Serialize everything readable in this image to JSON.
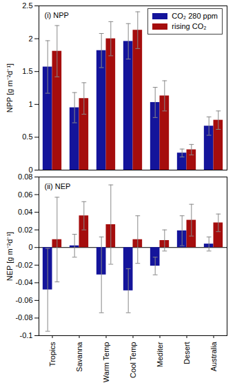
{
  "chart_data": [
    {
      "type": "bar",
      "title": "(i) NPP",
      "ylabel": "NPP [g m⁻²d⁻¹]",
      "categories": [
        "Tropics",
        "Savanna",
        "Warm Temp",
        "Cool Temp",
        "Mediter",
        "Desert",
        "Australia"
      ],
      "series": [
        {
          "name": "CO₂ 280 ppm",
          "color": "#14149b",
          "values": [
            1.57,
            0.95,
            1.82,
            1.96,
            1.03,
            0.26,
            0.67
          ],
          "errors": [
            0.4,
            0.23,
            0.26,
            0.27,
            0.23,
            0.06,
            0.14
          ]
        },
        {
          "name": "rising CO₂",
          "color": "#a50d0d",
          "values": [
            1.81,
            1.09,
            2.0,
            2.13,
            1.13,
            0.31,
            0.76
          ],
          "errors": [
            0.39,
            0.24,
            0.26,
            0.28,
            0.23,
            0.08,
            0.14
          ]
        }
      ],
      "ylim": [
        0,
        2.5
      ],
      "yticks": [
        0,
        0.5,
        1,
        1.5,
        2,
        2.5
      ],
      "legend": "top-right",
      "tick_labels": "y"
    },
    {
      "type": "bar",
      "title": "(ii) NEP",
      "ylabel": "NEP [g m⁻²d⁻¹]",
      "categories": [
        "Tropics",
        "Savanna",
        "Warm Temp",
        "Cool Temp",
        "Mediter",
        "Desert",
        "Australia"
      ],
      "series": [
        {
          "name": "CO₂ 280 ppm",
          "color": "#14149b",
          "values": [
            -0.048,
            0.002,
            -0.031,
            -0.049,
            -0.021,
            0.019,
            0.004
          ],
          "errors": [
            0.047,
            0.013,
            0.043,
            0.025,
            0.01,
            0.017,
            0.008
          ]
        },
        {
          "name": "rising CO₂",
          "color": "#a50d0d",
          "values": [
            0.009,
            0.036,
            0.026,
            0.009,
            0.008,
            0.031,
            0.028
          ],
          "errors": [
            0.048,
            0.016,
            0.045,
            0.027,
            0.012,
            0.018,
            0.01
          ]
        }
      ],
      "ylim": [
        -0.1,
        0.08
      ],
      "yticks": [
        -0.1,
        -0.08,
        -0.06,
        -0.04,
        -0.02,
        0,
        0.02,
        0.04,
        0.06,
        0.08
      ]
    }
  ]
}
